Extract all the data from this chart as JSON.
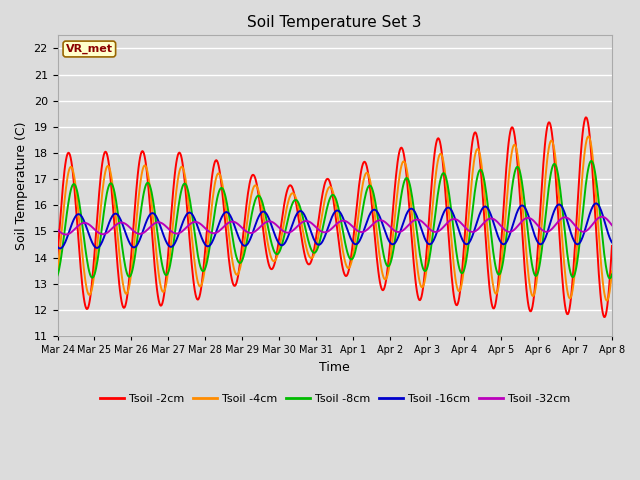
{
  "title": "Soil Temperature Set 3",
  "xlabel": "Time",
  "ylabel": "Soil Temperature (C)",
  "ylim": [
    11.0,
    22.5
  ],
  "yticks": [
    11.0,
    12.0,
    13.0,
    14.0,
    15.0,
    16.0,
    17.0,
    18.0,
    19.0,
    20.0,
    21.0,
    22.0
  ],
  "colors": {
    "Tsoil -2cm": "#FF0000",
    "Tsoil -4cm": "#FF8C00",
    "Tsoil -8cm": "#00BB00",
    "Tsoil -16cm": "#0000CC",
    "Tsoil -32cm": "#BB00BB"
  },
  "tick_labels": [
    "Mar 24",
    "Mar 25",
    "Mar 26",
    "Mar 27",
    "Mar 28",
    "Mar 29",
    "Mar 30",
    "Mar 31",
    "Apr 1",
    "Apr 2",
    "Apr 3",
    "Apr 4",
    "Apr 5",
    "Apr 6",
    "Apr 7",
    "Apr 8"
  ],
  "background_color": "#DCDCDC",
  "grid_color": "#FFFFFF",
  "annotation_text": "VR_met",
  "annotation_bg": "#FFFFCC",
  "annotation_border": "#996600"
}
